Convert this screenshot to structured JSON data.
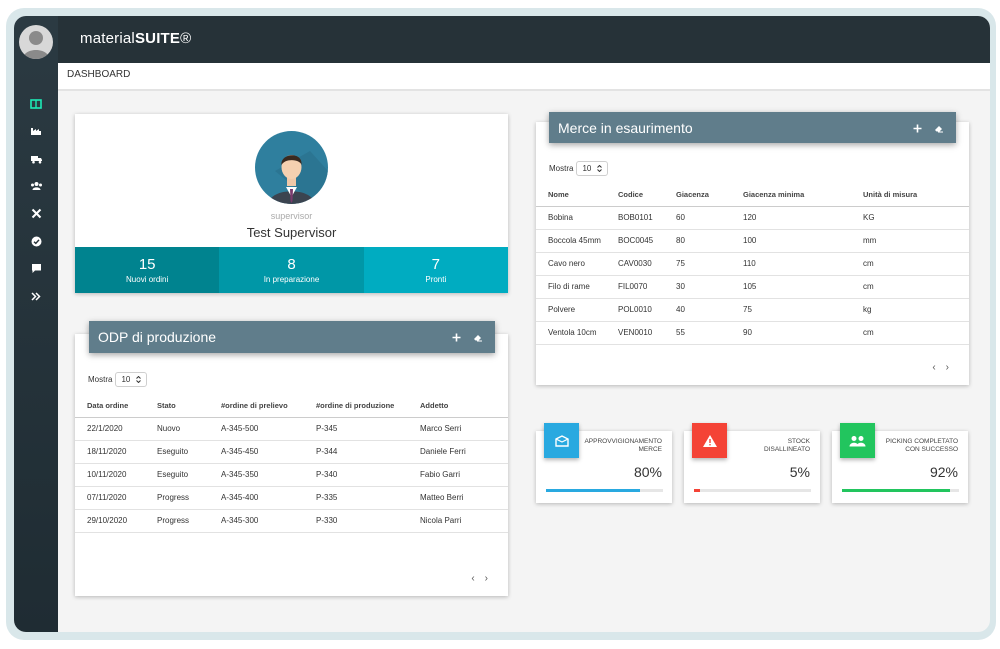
{
  "app": {
    "brand_light": "material",
    "brand_bold": "SUITE",
    "brand_mark": "®"
  },
  "breadcrumb": "DASHBOARD",
  "sidebar": {
    "items": [
      "dashboard-icon",
      "factory-icon",
      "truck-icon",
      "users-icon",
      "tools-icon",
      "check-circle-icon",
      "chat-icon",
      "expand-icon"
    ],
    "active": "dashboard-icon"
  },
  "profile": {
    "role": "supervisor",
    "name": "Test Supervisor",
    "stats": [
      {
        "value": "15",
        "label": "Nuovi ordini",
        "color": "#00838f"
      },
      {
        "value": "8",
        "label": "In preparazione",
        "color": "#0097a7"
      },
      {
        "value": "7",
        "label": "Pronti",
        "color": "#00acc1"
      }
    ]
  },
  "odp": {
    "title": "ODP di produzione",
    "mostra_label": "Mostra",
    "page_size": "10",
    "columns": [
      "Data ordine",
      "Stato",
      "#ordine di prelievo",
      "#ordine di produzione",
      "Addetto"
    ],
    "rows": [
      [
        "22/1/2020",
        "Nuovo",
        "A-345-500",
        "P-345",
        "Marco Serri"
      ],
      [
        "18/11/2020",
        "Eseguito",
        "A-345-450",
        "P-344",
        "Daniele Ferri"
      ],
      [
        "10/11/2020",
        "Eseguito",
        "A-345-350",
        "P-340",
        "Fabio Garri"
      ],
      [
        "07/11/2020",
        "Progress",
        "A-345-400",
        "P-335",
        "Matteo Berri"
      ],
      [
        "29/10/2020",
        "Progress",
        "A-345-300",
        "P-330",
        "Nicola Parri"
      ]
    ],
    "prev": "‹",
    "next": "›"
  },
  "merce": {
    "title": "Merce in esaurimento",
    "mostra_label": "Mostra",
    "page_size": "10",
    "columns": [
      "Nome",
      "Codice",
      "Giacenza",
      "Giacenza minima",
      "Unità di misura"
    ],
    "rows": [
      [
        "Bobina",
        "BOB0101",
        "60",
        "120",
        "KG"
      ],
      [
        "Boccola 45mm",
        "BOC0045",
        "80",
        "100",
        "mm"
      ],
      [
        "Cavo nero",
        "CAV0030",
        "75",
        "110",
        "cm"
      ],
      [
        "Filo di rame",
        "FIL0070",
        "30",
        "105",
        "cm"
      ],
      [
        "Polvere",
        "POL0010",
        "40",
        "75",
        "kg"
      ],
      [
        "Ventola 10cm",
        "VEN0010",
        "55",
        "90",
        "cm"
      ]
    ],
    "prev": "‹",
    "next": "›"
  },
  "kpis": [
    {
      "title_l1": "APPROVVIGIONAMENTO",
      "title_l2": "MERCE",
      "value": "80%",
      "progress": 0.8,
      "color": "#29a9e0",
      "icon": "box-icon"
    },
    {
      "title_l1": "STOCK",
      "title_l2": "DISALLINEATO",
      "value": "5%",
      "progress": 0.05,
      "color": "#f44336",
      "icon": "warning-icon"
    },
    {
      "title_l1": "PICKING COMPLETATO",
      "title_l2": "CON SUCCESSO",
      "value": "92%",
      "progress": 0.92,
      "color": "#22c55e",
      "icon": "people-icon"
    }
  ],
  "colors": {
    "sidebar": "#263238",
    "header": "#607d8b",
    "active_icon": "#1de9b6"
  }
}
